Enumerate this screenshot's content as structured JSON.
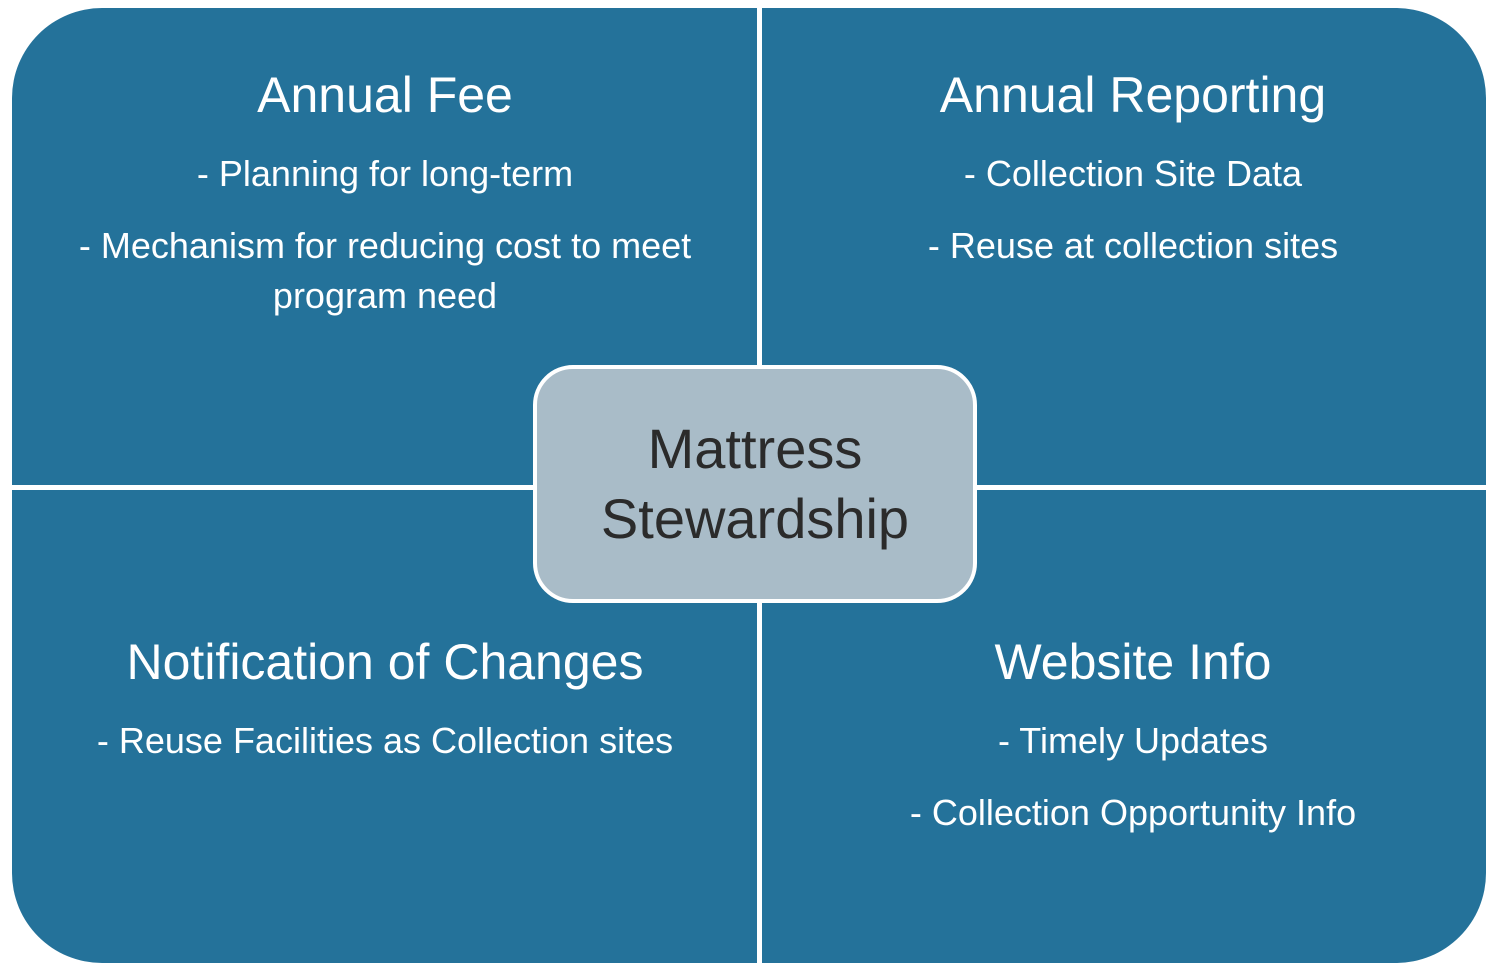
{
  "center": {
    "label": "Mattress Stewardship"
  },
  "quadrants": [
    {
      "title": "Annual Fee",
      "items": [
        "- Planning for long-term",
        "- Mechanism for reducing cost to meet program need"
      ]
    },
    {
      "title": "Annual Reporting",
      "items": [
        "- Collection Site Data",
        "- Reuse at collection sites"
      ]
    },
    {
      "title": "Notification of Changes",
      "items": [
        "- Reuse Facilities as Collection sites"
      ]
    },
    {
      "title": "Website Info",
      "items": [
        "- Timely Updates",
        "- Collection Opportunity Info"
      ]
    }
  ]
}
